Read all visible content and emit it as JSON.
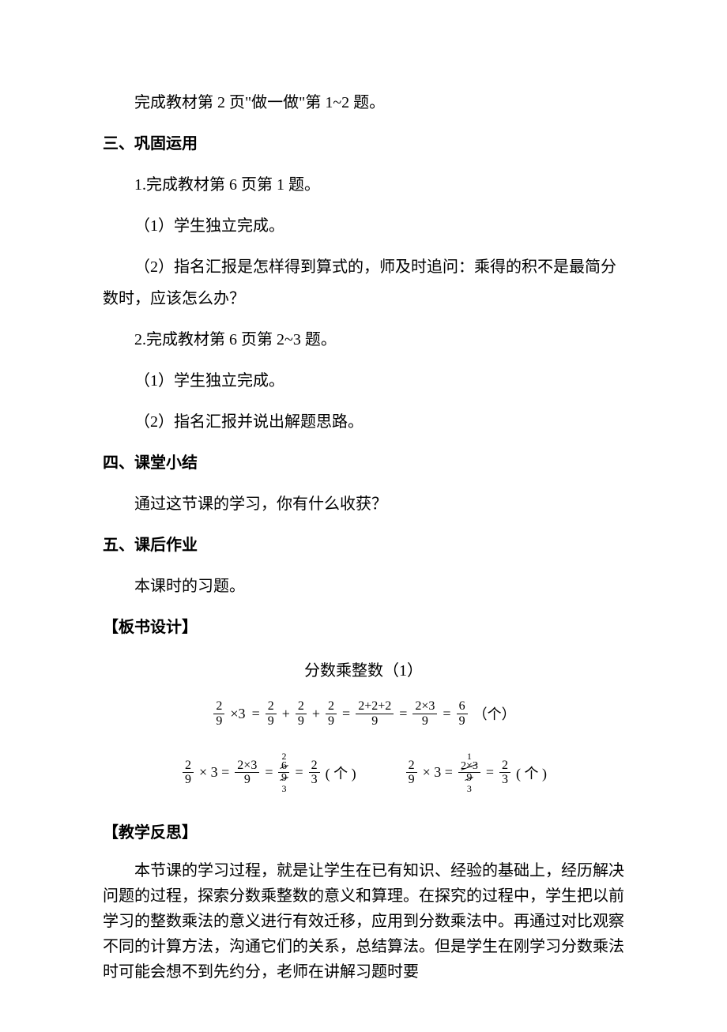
{
  "intro_line": "完成教材第 2 页\"做一做\"第 1~2 题。",
  "section3": {
    "heading": "三、巩固运用",
    "item1": "1.完成教材第 6 页第 1 题。",
    "item1_sub1": "（1）学生独立完成。",
    "item1_sub2": "（2）指名汇报是怎样得到算式的，师及时追问：乘得的积不是最简分数时，应该怎么办？",
    "item2": "2.完成教材第 6 页第 2~3 题。",
    "item2_sub1": "（1）学生独立完成。",
    "item2_sub2": "（2）指名汇报并说出解题思路。"
  },
  "section4": {
    "heading": "四、课堂小结",
    "content": "通过这节课的学习，你有什么收获？"
  },
  "section5": {
    "heading": "五、课后作业",
    "content": "本课时的习题。"
  },
  "board": {
    "heading": "【板书设计】",
    "title": "分数乘整数（1）",
    "eq1": {
      "f1_num": "2",
      "f1_den": "9",
      "mult": "×3",
      "eq": "=",
      "f2_num": "2",
      "f2_den": "9",
      "plus": "+",
      "f3_num": "2",
      "f3_den": "9",
      "f4_num": "2",
      "f4_den": "9",
      "f5_num": "2+2+2",
      "f5_den": "9",
      "f6_num": "2×3",
      "f6_den": "9",
      "f7_num": "6",
      "f7_den": "9",
      "unit": "（个）"
    },
    "eq2": {
      "f1_num": "2",
      "f1_den": "9",
      "mult": "× 3 =",
      "f2_num": "2×3",
      "f2_den": "9",
      "eq": "=",
      "cancel_top": "2",
      "cancel_num": "6",
      "cancel_den": "9",
      "cancel_bottom": "3",
      "f3_num": "2",
      "f3_den": "3",
      "unit": "( 个 )"
    },
    "eq3": {
      "f1_num": "2",
      "f1_den": "9",
      "mult": "× 3 =",
      "cancel_top": "1",
      "cancel_num": "2×3",
      "cancel_den": "9",
      "cancel_bottom": "3",
      "eq": "=",
      "f3_num": "2",
      "f3_den": "3",
      "unit": "( 个 )"
    }
  },
  "reflection": {
    "heading": "【教学反思】",
    "content": "本节课的学习过程，就是让学生在已有知识、经验的基础上，经历解决问题的过程，探索分数乘整数的意义和算理。在探究的过程中，学生把以前学习的整数乘法的意义进行有效迁移，应用到分数乘法中。再通过对比观察不同的计算方法，沟通它们的关系，总结算法。但是学生在刚学习分数乘法时可能会想不到先约分，老师在讲解习题时要"
  }
}
